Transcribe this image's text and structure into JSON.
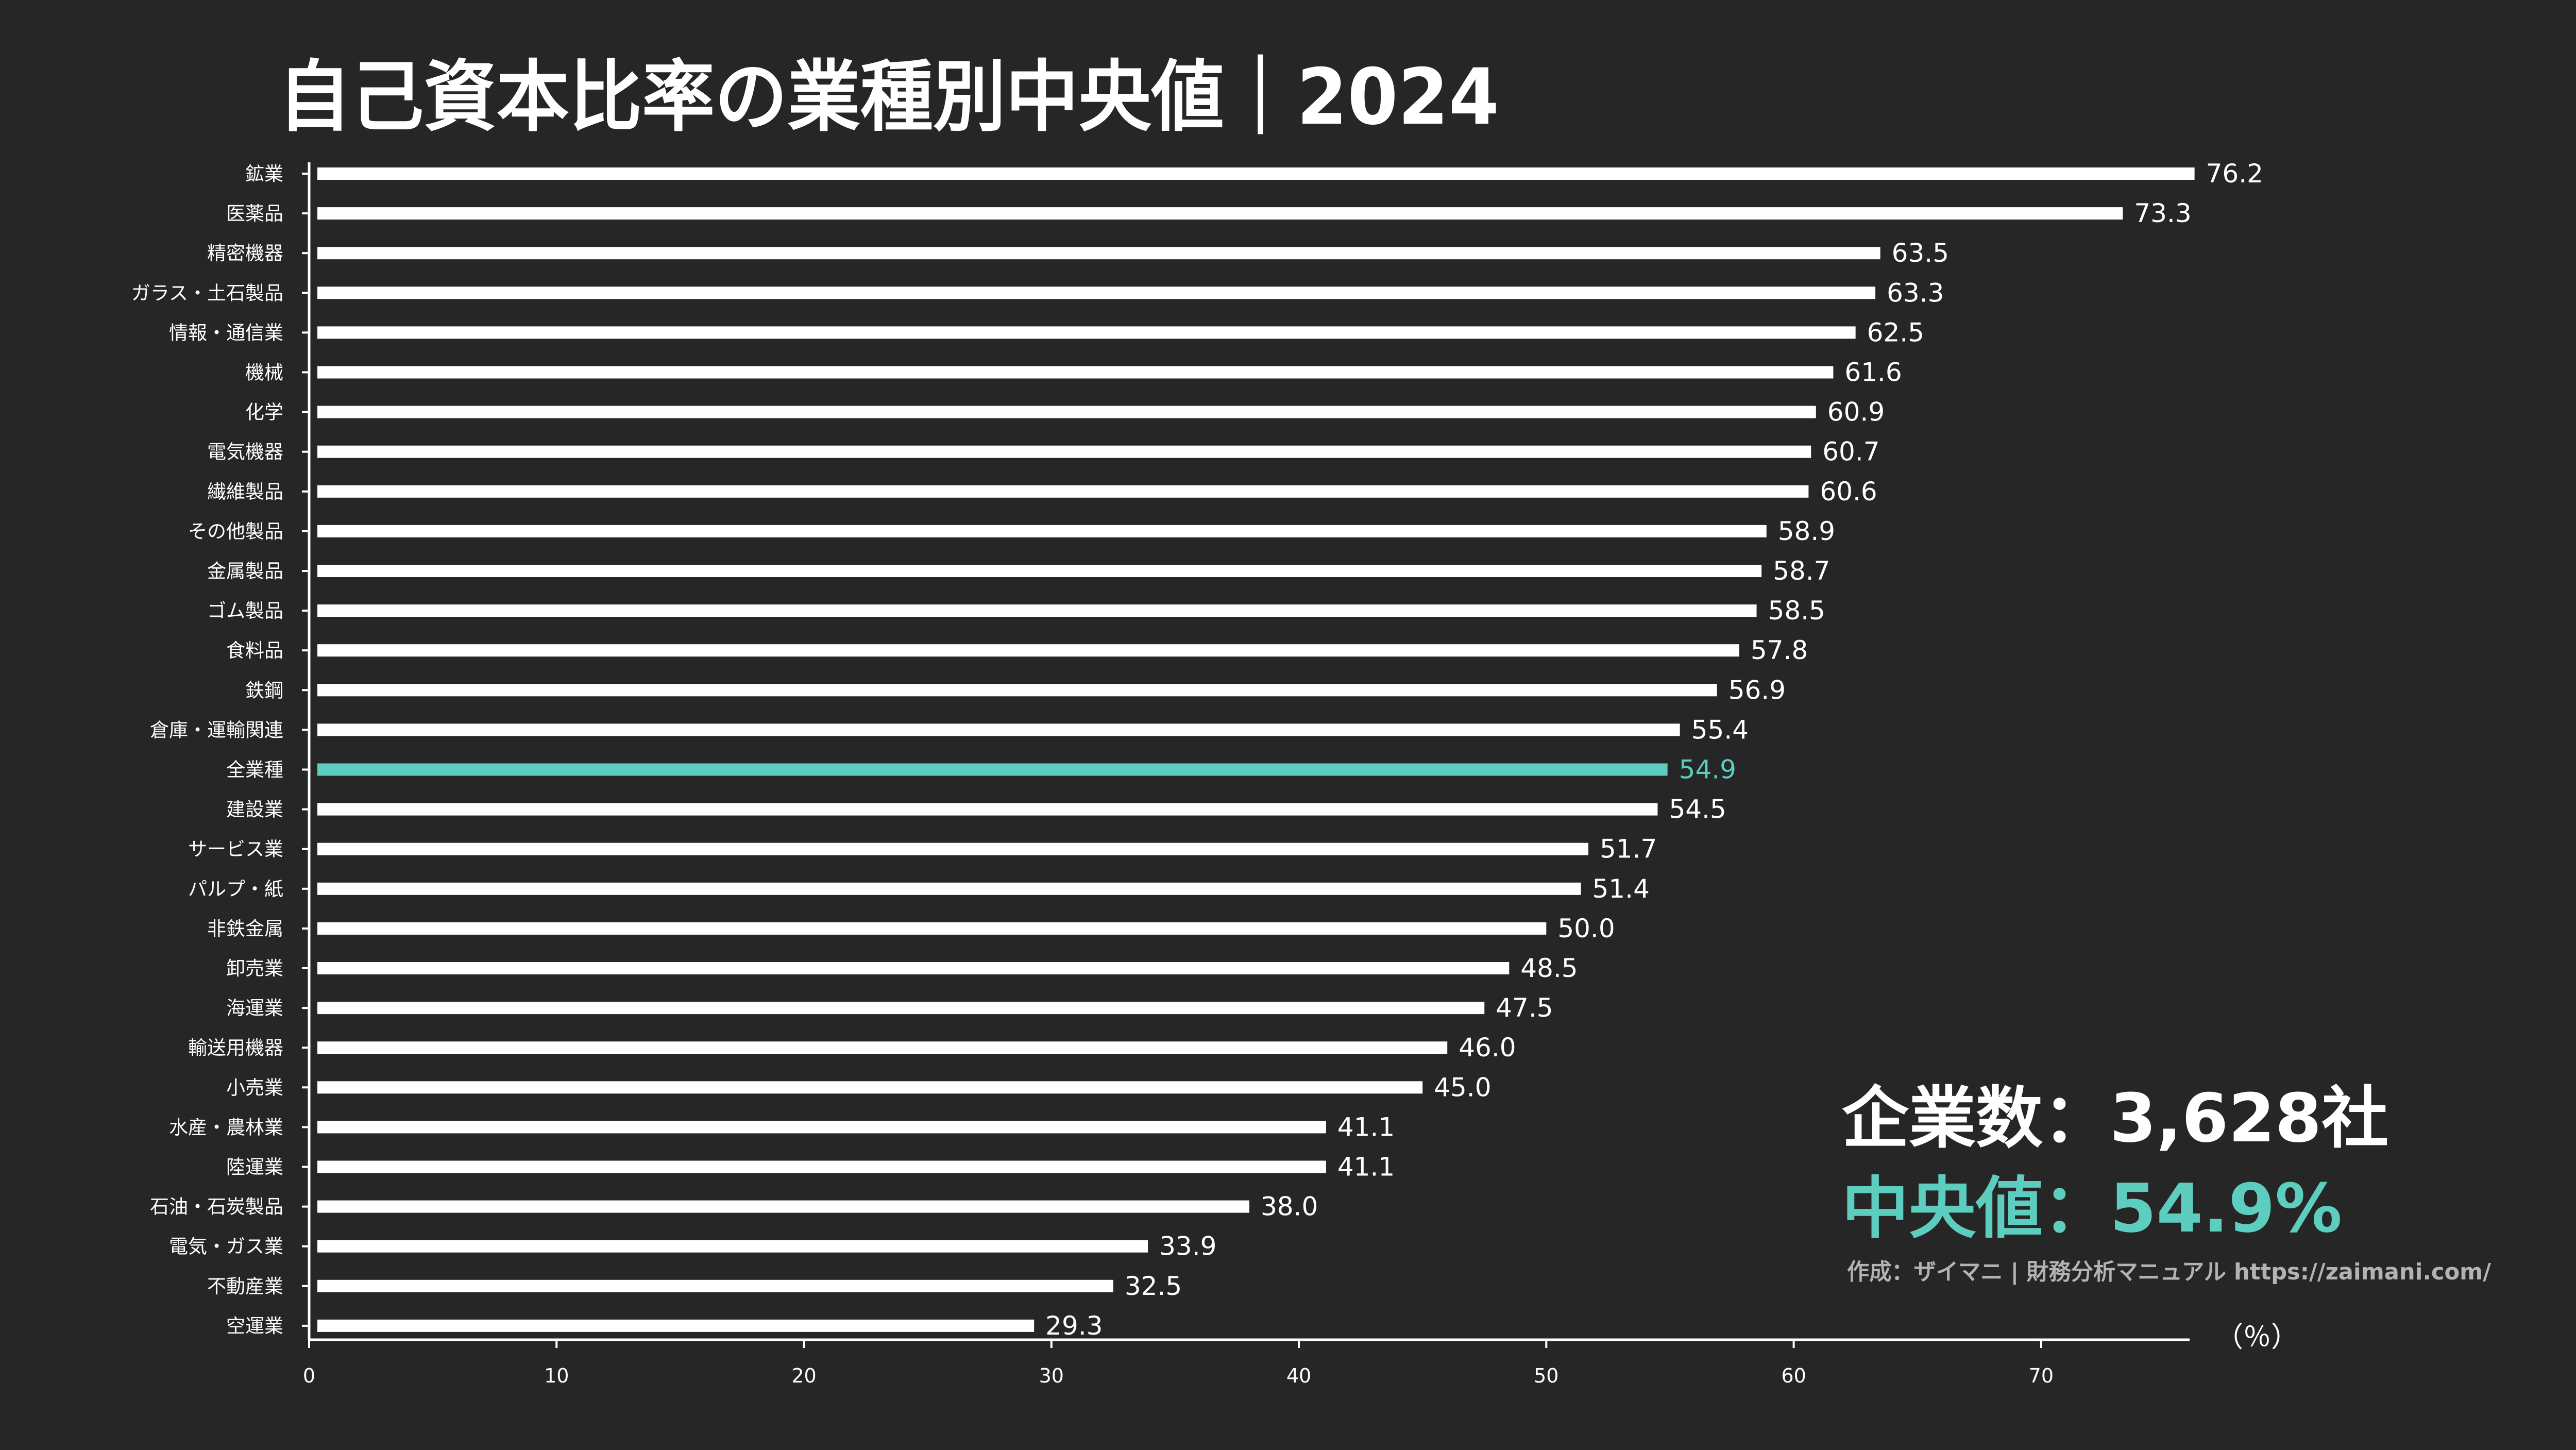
{
  "chart_data": {
    "type": "bar",
    "orientation": "horizontal",
    "title": "自己資本比率の業種別中央値｜2024",
    "xlabel": "（％）",
    "ylabel": "",
    "xlim": [
      0,
      76
    ],
    "x_ticks": [
      0,
      10,
      20,
      30,
      40,
      50,
      60,
      70
    ],
    "grid": false,
    "categories": [
      "鉱業",
      "医薬品",
      "精密機器",
      "ガラス・土石製品",
      "情報・通信業",
      "機械",
      "化学",
      "電気機器",
      "繊維製品",
      "その他製品",
      "金属製品",
      "ゴム製品",
      "食料品",
      "鉄鋼",
      "倉庫・運輸関連",
      "全業種",
      "建設業",
      "サービス業",
      "パルプ・紙",
      "非鉄金属",
      "卸売業",
      "海運業",
      "輸送用機器",
      "小売業",
      "水産・農林業",
      "陸運業",
      "石油・石炭製品",
      "電気・ガス業",
      "不動産業",
      "空運業"
    ],
    "values": [
      76.2,
      73.3,
      63.5,
      63.3,
      62.5,
      61.6,
      60.9,
      60.7,
      60.6,
      58.9,
      58.7,
      58.5,
      57.8,
      56.9,
      55.4,
      54.9,
      54.5,
      51.7,
      51.4,
      50.0,
      48.5,
      47.5,
      46.0,
      45.0,
      41.1,
      41.1,
      38.0,
      33.9,
      32.5,
      29.3
    ],
    "value_labels": [
      "76.2",
      "73.3",
      "63.5",
      "63.3",
      "62.5",
      "61.6",
      "60.9",
      "60.7",
      "60.6",
      "58.9",
      "58.7",
      "58.5",
      "57.8",
      "56.9",
      "55.4",
      "54.9",
      "54.5",
      "51.7",
      "51.4",
      "50.0",
      "48.5",
      "47.5",
      "46.0",
      "45.0",
      "41.1",
      "41.1",
      "38.0",
      "33.9",
      "32.5",
      "29.3"
    ],
    "highlight_category": "全業種",
    "colors": {
      "background": "#262626",
      "bar": "#ffffff",
      "highlight": "#5ccdbf",
      "text": "#ffffff",
      "source": "#b3b3b3"
    }
  },
  "annotations": {
    "company_count": "企業数：3,628社",
    "median": "中央値：54.9%",
    "source": "作成：ザイマニ | 財務分析マニュアル https://zaimani.com/"
  }
}
